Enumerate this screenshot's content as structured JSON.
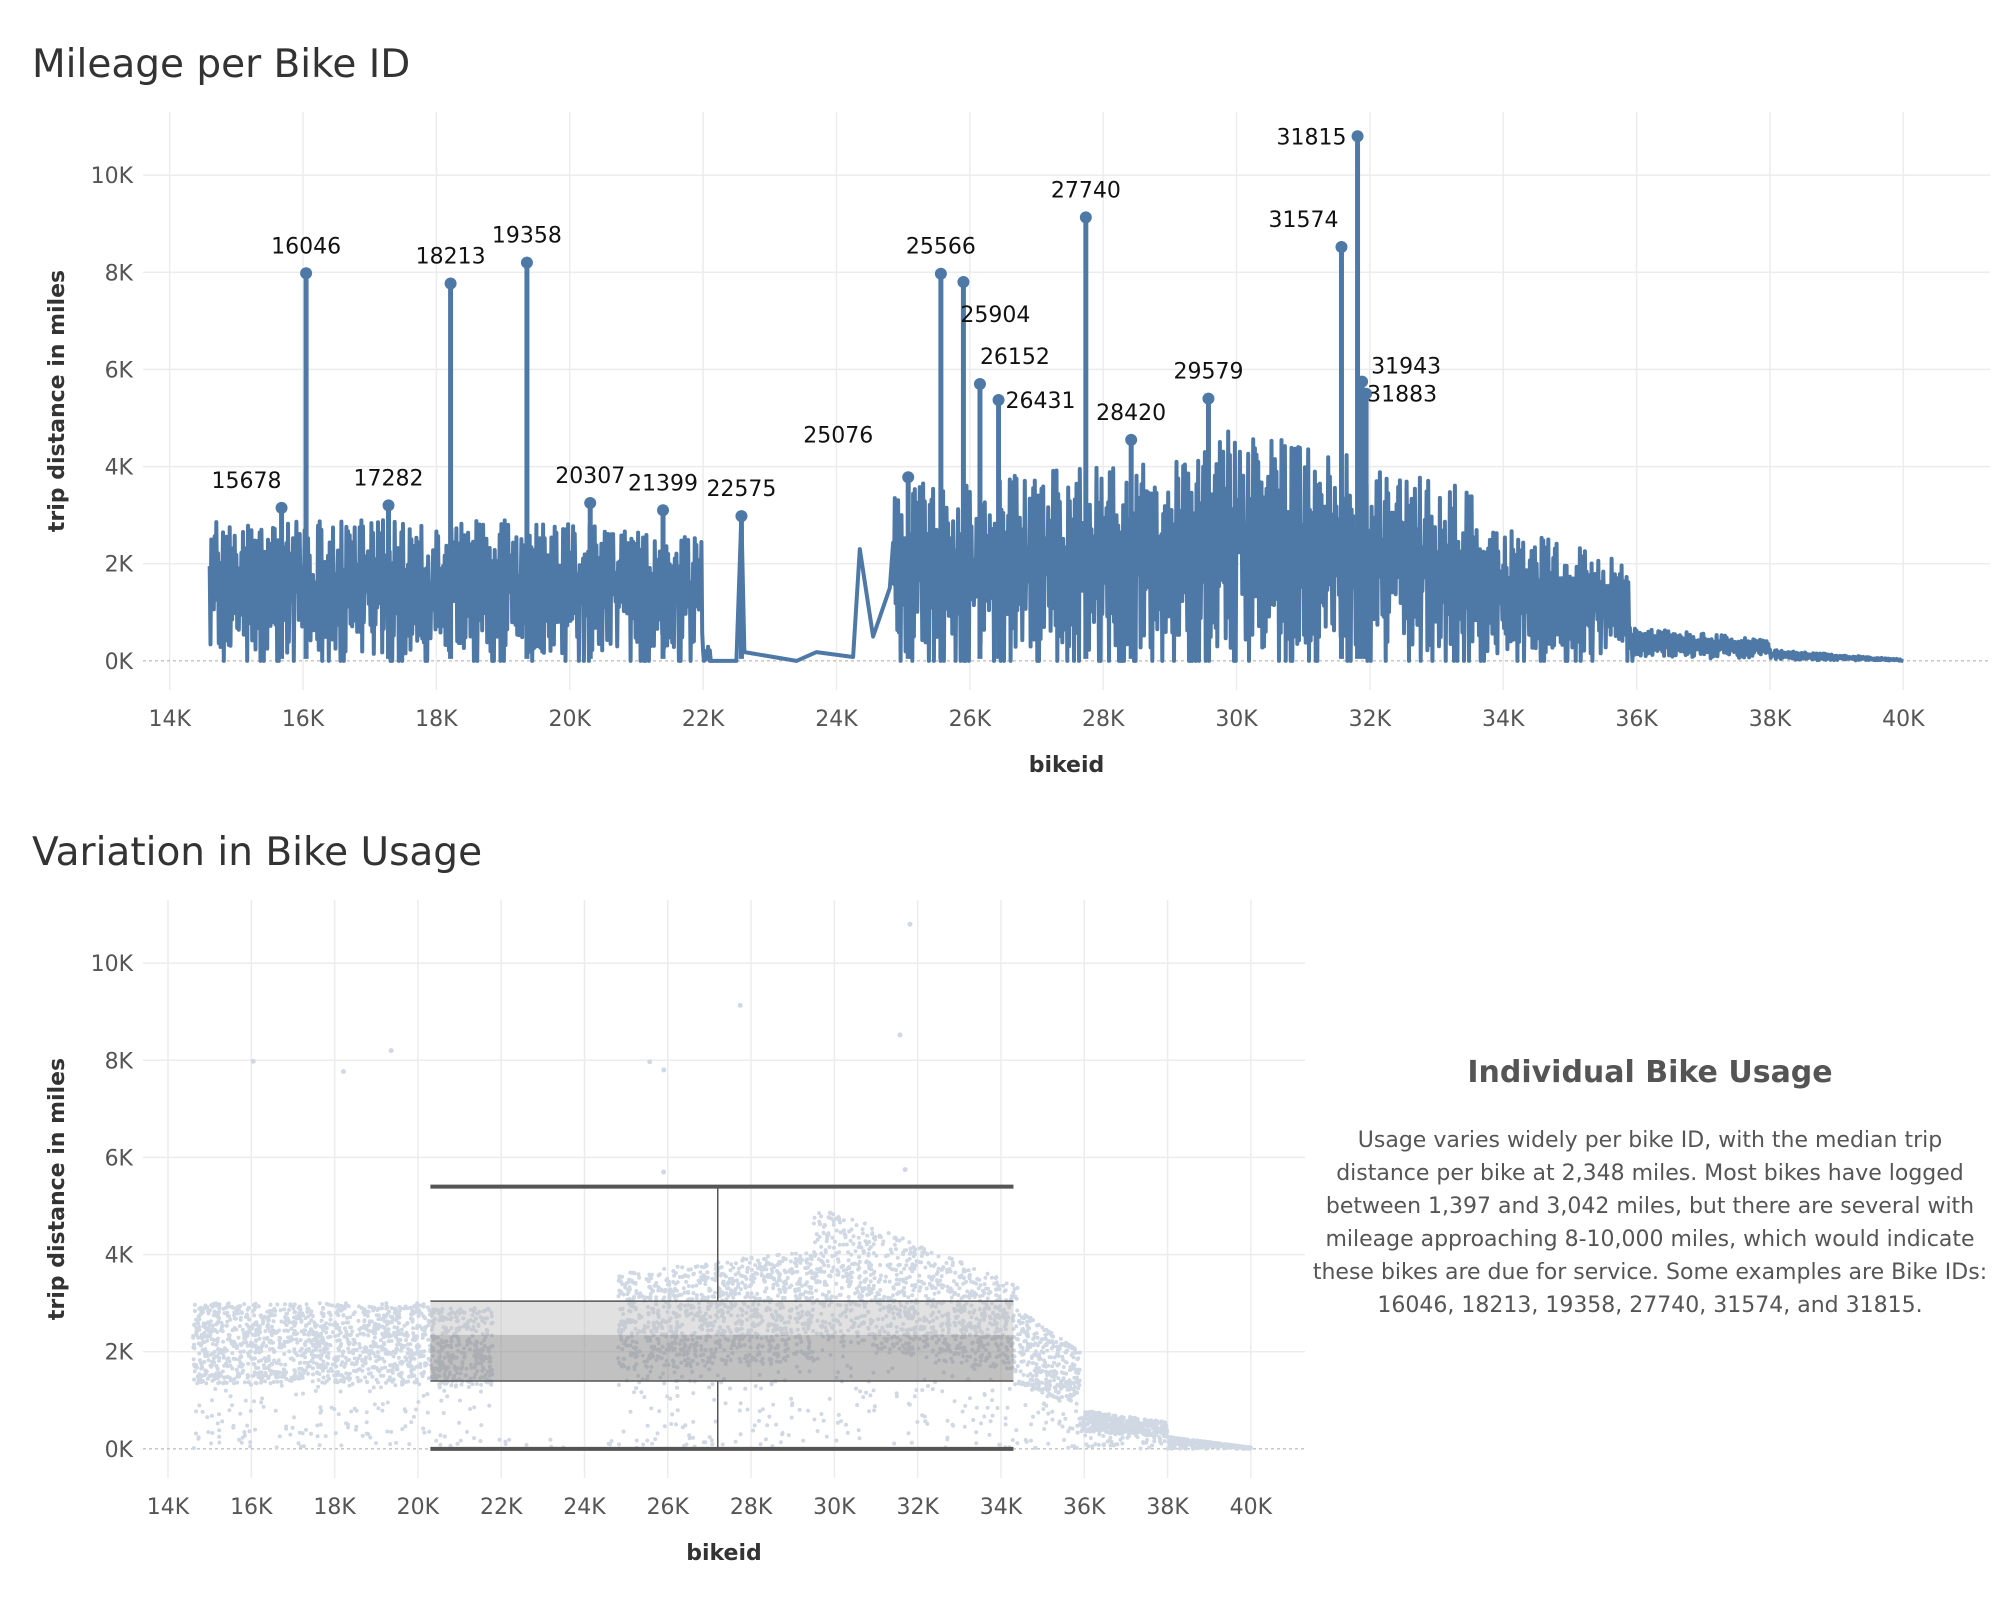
{
  "chart_data": [
    {
      "type": "line",
      "title": "Mileage per Bike ID",
      "xlabel": "bikeid",
      "ylabel": "trip distance in miles",
      "xlim": [
        13600,
        41300
      ],
      "ylim": [
        -600,
        11300
      ],
      "x_ticks": [
        14000,
        16000,
        18000,
        20000,
        22000,
        24000,
        26000,
        28000,
        30000,
        32000,
        34000,
        36000,
        38000,
        40000
      ],
      "x_tick_labels": [
        "14K",
        "16K",
        "18K",
        "20K",
        "22K",
        "24K",
        "26K",
        "28K",
        "30K",
        "32K",
        "34K",
        "36K",
        "38K",
        "40K"
      ],
      "y_ticks": [
        0,
        2000,
        4000,
        6000,
        8000,
        10000
      ],
      "y_tick_labels": [
        "0K",
        "2K",
        "4K",
        "6K",
        "8K",
        "10K"
      ],
      "grid": true,
      "color": "#4e79a7",
      "annotations": [
        {
          "label": "15678",
          "x": 15678,
          "y": 3150
        },
        {
          "label": "16046",
          "x": 16046,
          "y": 7980
        },
        {
          "label": "17282",
          "x": 17282,
          "y": 3200
        },
        {
          "label": "18213",
          "x": 18213,
          "y": 7770
        },
        {
          "label": "19358",
          "x": 19358,
          "y": 8200
        },
        {
          "label": "20307",
          "x": 20307,
          "y": 3250
        },
        {
          "label": "21399",
          "x": 21399,
          "y": 3100
        },
        {
          "label": "22575",
          "x": 22575,
          "y": 2980
        },
        {
          "label": "25076",
          "x": 25076,
          "y": 3780
        },
        {
          "label": "25566",
          "x": 25566,
          "y": 7970
        },
        {
          "label": "25904",
          "x": 25904,
          "y": 7800
        },
        {
          "label": "26152",
          "x": 26152,
          "y": 5700
        },
        {
          "label": "26431",
          "x": 26431,
          "y": 5370
        },
        {
          "label": "27740",
          "x": 27740,
          "y": 9130
        },
        {
          "label": "28420",
          "x": 28420,
          "y": 4550
        },
        {
          "label": "29579",
          "x": 29579,
          "y": 5400
        },
        {
          "label": "31574",
          "x": 31574,
          "y": 8520
        },
        {
          "label": "31815",
          "x": 31815,
          "y": 10800
        },
        {
          "label": "31943",
          "x": 31943,
          "y": 5500
        },
        {
          "label": "31883",
          "x": 31883,
          "y": 5750
        }
      ]
    },
    {
      "type": "scatter",
      "title": "Variation in Bike Usage",
      "xlabel": "bikeid",
      "ylabel": "trip distance in miles",
      "xlim": [
        13400,
        41300
      ],
      "ylim": [
        -600,
        11300
      ],
      "x_ticks": [
        14000,
        16000,
        18000,
        20000,
        22000,
        24000,
        26000,
        28000,
        30000,
        32000,
        34000,
        36000,
        38000,
        40000
      ],
      "x_tick_labels": [
        "14K",
        "16K",
        "18K",
        "20K",
        "22K",
        "24K",
        "26K",
        "28K",
        "30K",
        "32K",
        "34K",
        "36K",
        "38K",
        "40K"
      ],
      "y_ticks": [
        0,
        2000,
        4000,
        6000,
        8000,
        10000
      ],
      "y_tick_labels": [
        "0K",
        "2K",
        "4K",
        "6K",
        "8K",
        "10K"
      ],
      "grid": true,
      "point_color": "#cfd8e3",
      "box_plot": {
        "x_range": [
          20300,
          34300
        ],
        "whisker_x": 27200,
        "min": 0,
        "q1": 1397,
        "median": 2348,
        "q3": 3042,
        "max": 5400
      },
      "outliers": [
        {
          "x": 16046,
          "y": 7980
        },
        {
          "x": 18213,
          "y": 7770
        },
        {
          "x": 19358,
          "y": 8200
        },
        {
          "x": 25566,
          "y": 7970
        },
        {
          "x": 25904,
          "y": 7800
        },
        {
          "x": 27740,
          "y": 9130
        },
        {
          "x": 31574,
          "y": 8520
        },
        {
          "x": 31815,
          "y": 10800
        },
        {
          "x": 25900,
          "y": 5700
        },
        {
          "x": 31700,
          "y": 5750
        }
      ]
    }
  ],
  "side_panel": {
    "title": "Individual Bike Usage",
    "text": "Usage varies widely per bike ID, with the median trip distance per bike at 2,348 miles. Most bikes have logged between 1,397 and 3,042 miles, but there are several with mileage approaching 8-10,000 miles, which would indicate these bikes are due for service. Some examples are Bike IDs: 16046, 18213, 19358, 27740, 31574, and 31815."
  }
}
